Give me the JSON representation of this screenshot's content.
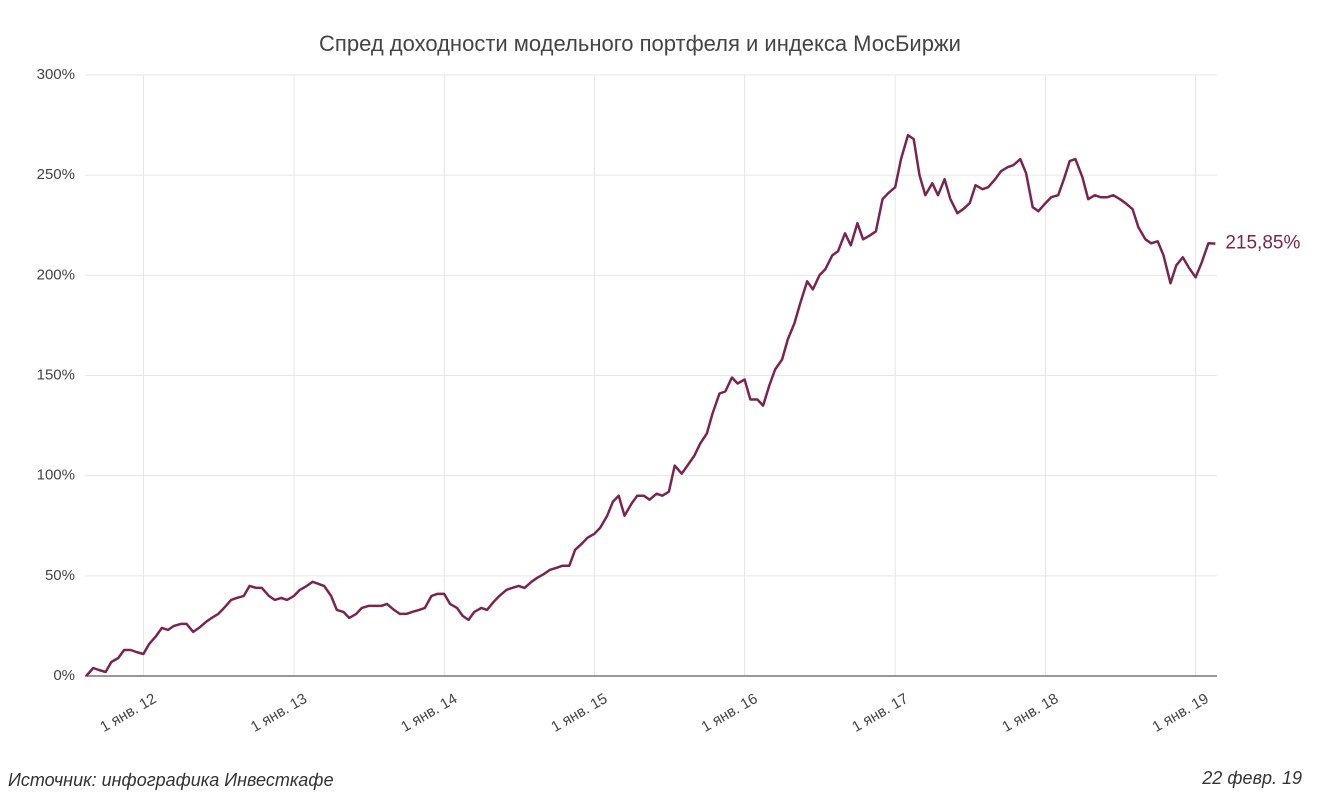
{
  "chart_data": {
    "type": "line",
    "title": "Спред доходности модельного портфеля и индекса МосБиржи",
    "source": "Источник: инфографика Инвесткафе",
    "date": "22 февр. 19",
    "annotation": "215,85%",
    "x": [
      "2011-08-15",
      "2011-09-01",
      "2011-09-15",
      "2011-10-01",
      "2011-10-15",
      "2011-11-01",
      "2011-11-15",
      "2011-12-01",
      "2011-12-15",
      "2012-01-01",
      "2012-01-15",
      "2012-02-01",
      "2012-02-15",
      "2012-03-01",
      "2012-03-15",
      "2012-04-01",
      "2012-04-15",
      "2012-05-01",
      "2012-05-15",
      "2012-06-01",
      "2012-06-15",
      "2012-07-01",
      "2012-07-15",
      "2012-08-01",
      "2012-08-15",
      "2012-09-01",
      "2012-09-15",
      "2012-10-01",
      "2012-10-15",
      "2012-11-01",
      "2012-11-15",
      "2012-12-01",
      "2012-12-15",
      "2013-01-01",
      "2013-01-15",
      "2013-02-01",
      "2013-02-15",
      "2013-03-01",
      "2013-03-15",
      "2013-04-01",
      "2013-04-15",
      "2013-05-01",
      "2013-05-15",
      "2013-06-01",
      "2013-06-15",
      "2013-07-01",
      "2013-07-15",
      "2013-08-01",
      "2013-08-15",
      "2013-09-01",
      "2013-09-15",
      "2013-10-01",
      "2013-10-15",
      "2013-11-01",
      "2013-11-15",
      "2013-12-01",
      "2013-12-15",
      "2014-01-01",
      "2014-01-15",
      "2014-02-01",
      "2014-02-15",
      "2014-03-01",
      "2014-03-15",
      "2014-04-01",
      "2014-04-15",
      "2014-05-01",
      "2014-05-15",
      "2014-06-01",
      "2014-06-15",
      "2014-07-01",
      "2014-07-15",
      "2014-08-01",
      "2014-08-15",
      "2014-09-01",
      "2014-09-15",
      "2014-10-01",
      "2014-10-15",
      "2014-11-01",
      "2014-11-15",
      "2014-12-01",
      "2014-12-15",
      "2015-01-01",
      "2015-01-15",
      "2015-02-01",
      "2015-02-15",
      "2015-03-01",
      "2015-03-15",
      "2015-04-01",
      "2015-04-15",
      "2015-05-01",
      "2015-05-15",
      "2015-06-01",
      "2015-06-15",
      "2015-07-01",
      "2015-07-15",
      "2015-08-01",
      "2015-08-15",
      "2015-09-01",
      "2015-09-15",
      "2015-10-01",
      "2015-10-15",
      "2015-11-01",
      "2015-11-15",
      "2015-12-01",
      "2015-12-15",
      "2016-01-01",
      "2016-01-15",
      "2016-02-01",
      "2016-02-15",
      "2016-03-01",
      "2016-03-15",
      "2016-04-01",
      "2016-04-15",
      "2016-05-01",
      "2016-05-15",
      "2016-06-01",
      "2016-06-15",
      "2016-07-01",
      "2016-07-15",
      "2016-08-01",
      "2016-08-15",
      "2016-09-01",
      "2016-09-15",
      "2016-10-01",
      "2016-10-15",
      "2016-11-01",
      "2016-11-15",
      "2016-12-01",
      "2016-12-15",
      "2017-01-01",
      "2017-01-15",
      "2017-02-01",
      "2017-02-15",
      "2017-03-01",
      "2017-03-15",
      "2017-04-01",
      "2017-04-15",
      "2017-05-01",
      "2017-05-15",
      "2017-06-01",
      "2017-06-15",
      "2017-07-01",
      "2017-07-15",
      "2017-08-01",
      "2017-08-15",
      "2017-09-01",
      "2017-09-15",
      "2017-10-01",
      "2017-10-15",
      "2017-11-01",
      "2017-11-15",
      "2017-12-01",
      "2017-12-15",
      "2018-01-01",
      "2018-01-15",
      "2018-02-01",
      "2018-02-15",
      "2018-03-01",
      "2018-03-15",
      "2018-04-01",
      "2018-04-15",
      "2018-05-01",
      "2018-05-15",
      "2018-06-01",
      "2018-06-15",
      "2018-07-01",
      "2018-07-15",
      "2018-08-01",
      "2018-08-15",
      "2018-09-01",
      "2018-09-15",
      "2018-10-01",
      "2018-10-15",
      "2018-11-01",
      "2018-11-15",
      "2018-12-01",
      "2018-12-15",
      "2019-01-01",
      "2019-01-15",
      "2019-02-01",
      "2019-02-18"
    ],
    "series": [
      {
        "name": "Спред",
        "color": "#7b2452",
        "values": [
          0,
          4,
          3,
          2,
          7,
          9,
          13,
          13,
          12,
          11,
          16,
          20,
          24,
          23,
          25,
          26,
          26,
          22,
          24,
          27,
          29,
          31,
          34,
          38,
          39,
          40,
          45,
          44,
          44,
          40,
          38,
          39,
          38,
          40,
          43,
          45,
          47,
          46,
          45,
          40,
          33,
          32,
          29,
          31,
          34,
          35,
          35,
          35,
          36,
          33,
          31,
          31,
          32,
          33,
          34,
          40,
          41,
          41,
          36,
          34,
          30,
          28,
          32,
          34,
          33,
          37,
          40,
          43,
          44,
          45,
          44,
          47,
          49,
          51,
          53,
          54,
          55,
          55,
          63,
          66,
          69,
          71,
          74,
          80,
          87,
          90,
          80,
          86,
          90,
          90,
          88,
          91,
          90,
          92,
          105,
          101,
          105,
          110,
          116,
          121,
          131,
          141,
          142,
          149,
          146,
          148,
          138,
          138,
          135,
          145,
          153,
          158,
          168,
          176,
          186,
          197,
          193,
          200,
          203,
          210,
          212,
          221,
          215,
          226,
          218,
          220,
          222,
          238,
          241,
          244,
          258,
          270,
          268,
          250,
          240,
          246,
          240,
          248,
          238,
          231,
          233,
          236,
          245,
          243,
          244,
          248,
          252,
          254,
          255,
          258,
          251,
          234,
          232,
          236,
          239,
          240,
          248,
          257,
          258,
          249,
          238,
          240,
          239,
          239,
          240,
          238,
          236,
          233,
          224,
          218,
          216,
          217,
          210,
          196,
          205,
          209,
          204,
          199,
          206,
          216,
          215.85
        ]
      }
    ],
    "xlim": [
      "2011-08-12",
      "2019-02-22"
    ],
    "xticks": [
      {
        "value": "2012-01-01",
        "label": "1 янв. 12"
      },
      {
        "value": "2013-01-01",
        "label": "1 янв. 13"
      },
      {
        "value": "2014-01-01",
        "label": "1 янв. 14"
      },
      {
        "value": "2015-01-01",
        "label": "1 янв. 15"
      },
      {
        "value": "2016-01-01",
        "label": "1 янв. 16"
      },
      {
        "value": "2017-01-01",
        "label": "1 янв. 17"
      },
      {
        "value": "2018-01-01",
        "label": "1 янв. 18"
      },
      {
        "value": "2019-01-01",
        "label": "1 янв. 19"
      }
    ],
    "ylim": [
      0,
      300
    ],
    "yticks": [
      {
        "value": 0,
        "label": "0%"
      },
      {
        "value": 50,
        "label": "50%"
      },
      {
        "value": 100,
        "label": "100%"
      },
      {
        "value": 150,
        "label": "150%"
      },
      {
        "value": 200,
        "label": "200%"
      },
      {
        "value": 250,
        "label": "250%"
      },
      {
        "value": 300,
        "label": "300%"
      }
    ],
    "grid": true
  }
}
